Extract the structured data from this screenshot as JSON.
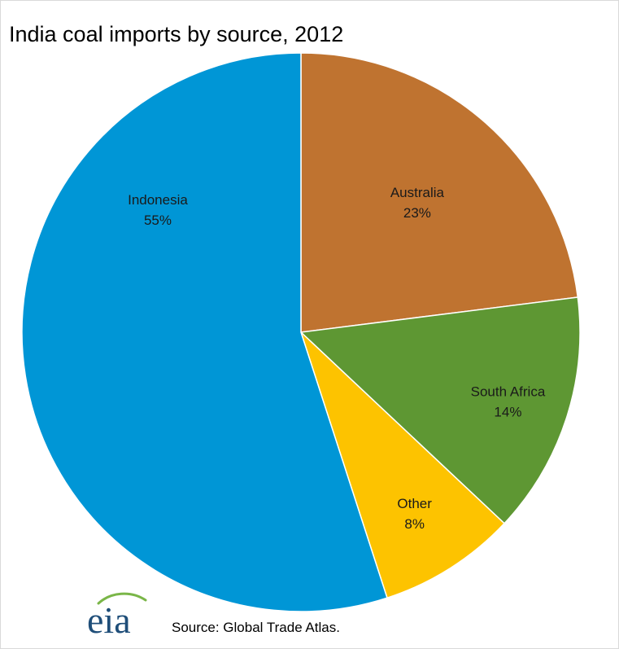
{
  "chart_data": {
    "type": "pie",
    "title": "India coal imports by source, 2012",
    "slices": [
      {
        "label": "Australia",
        "value": 23,
        "value_label": "23%",
        "color": "#bf7330"
      },
      {
        "label": "South Africa",
        "value": 14,
        "value_label": "14%",
        "color": "#5e9733"
      },
      {
        "label": "Other",
        "value": 8,
        "value_label": "8%",
        "color": "#fdc300"
      },
      {
        "label": "Indonesia",
        "value": 55,
        "value_label": "55%",
        "color": "#0096d6"
      }
    ],
    "start_angle_deg": 0,
    "direction": "clockwise",
    "source": "Source:  Global Trade Atlas."
  },
  "logo": {
    "text": "eia",
    "name": "eia-logo",
    "color": "#1f4e79",
    "swoosh_color": "#7ab648"
  }
}
